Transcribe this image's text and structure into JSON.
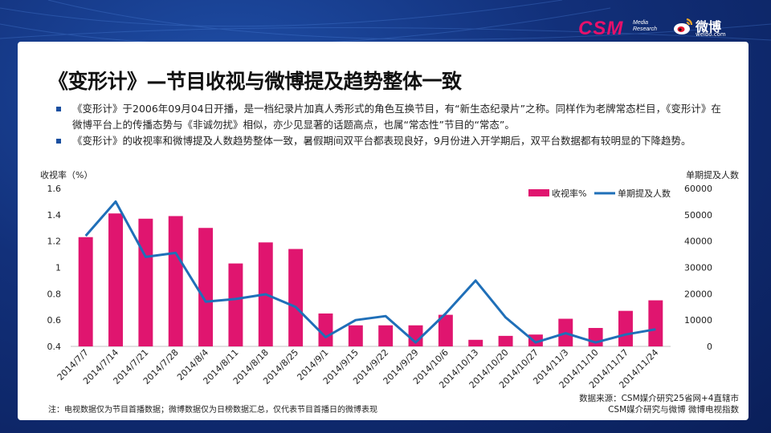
{
  "header": {
    "csm_logo": "CSM",
    "csm_sub_line1": "Media",
    "csm_sub_line2": "Research",
    "weibo_text": "微博",
    "weibo_url": "weibo.com"
  },
  "title": "《变形计》—节目收视与微博提及趋势整体一致",
  "bullets": [
    "《变形计》于2006年09月04日开播，是一档纪录片加真人秀形式的角色互换节目，有“新生态纪录片”之称。同样作为老牌常态栏目，《变形计》在微博平台上的传播态势与《非诚勿扰》相似，亦少见显著的话题高点，也属“常态性”节目的“常态”。",
    "《变形计》的收视率和微博提及人数趋势整体一致，暑假期间双平台都表现良好，9月份进入开学期后，双平台数据都有较明显的下降趋势。"
  ],
  "chart_data": {
    "type": "bar",
    "categories": [
      "2014/7/7",
      "2014/7/14",
      "2014/7/21",
      "2014/7/28",
      "2014/8/4",
      "2014/8/11",
      "2014/8/18",
      "2014/8/25",
      "2014/9/1",
      "2014/9/15",
      "2014/9/22",
      "2014/9/29",
      "2014/10/6",
      "2014/10/13",
      "2014/10/20",
      "2014/10/27",
      "2014/11/3",
      "2014/11/10",
      "2014/11/17",
      "2014/11/24"
    ],
    "series": [
      {
        "name": "收视率%",
        "type": "bar",
        "axis": "left",
        "values": [
          1.23,
          1.41,
          1.37,
          1.39,
          1.3,
          1.03,
          1.19,
          1.14,
          0.65,
          0.56,
          0.56,
          0.56,
          0.64,
          0.45,
          0.48,
          0.49,
          0.61,
          0.54,
          0.67,
          0.75
        ]
      },
      {
        "name": "单期提及人数",
        "type": "line",
        "axis": "right",
        "values": [
          42000,
          55000,
          34000,
          35500,
          17000,
          18000,
          19800,
          15000,
          3500,
          10000,
          11500,
          1500,
          12500,
          25000,
          11000,
          1500,
          5000,
          1500,
          4500,
          6500
        ]
      }
    ],
    "ylabel": "收视率（%）",
    "y2label": "单期提及人数",
    "ylim": [
      0.4,
      1.6
    ],
    "yticks": [
      "0.4",
      "0.6",
      "0.8",
      "1",
      "1.2",
      "1.4",
      "1.6"
    ],
    "y2lim": [
      0,
      60000
    ],
    "y2ticks": [
      "0",
      "10000",
      "20000",
      "30000",
      "40000",
      "50000",
      "60000"
    ],
    "legend_position": "top-right",
    "colors": {
      "bar": "#e0156f",
      "line": "#1f6fb8"
    }
  },
  "footer": {
    "note": "注：电视数据仅为节目首播数据；微博数据仅为日榜数据汇总，仅代表节目首播日的微博表现",
    "source_line1": "数据来源：CSM媒介研究25省网+4直辖市",
    "source_line2": "CSM媒介研究与微博 微博电视指数"
  }
}
